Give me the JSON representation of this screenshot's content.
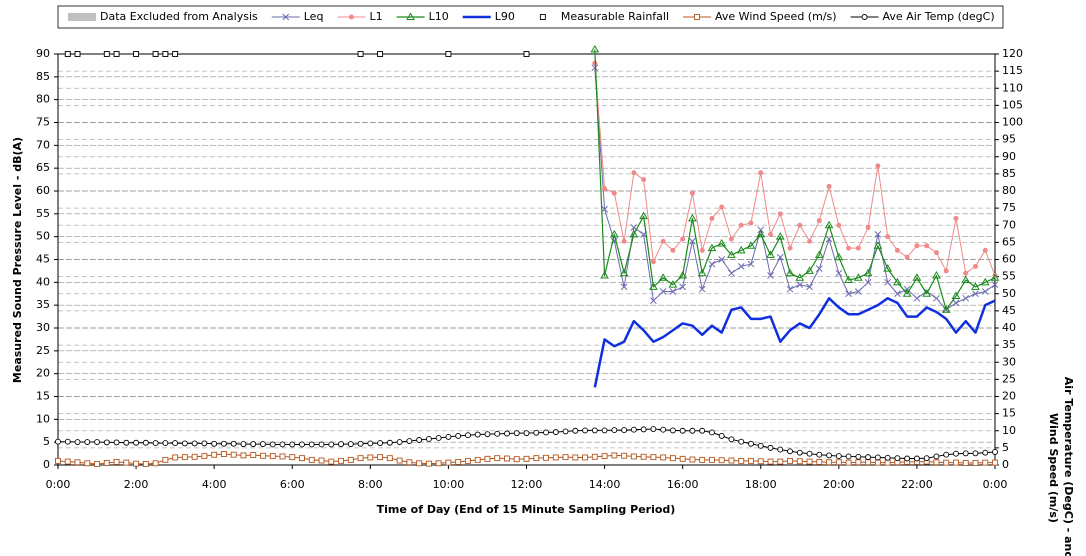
{
  "chart_data": {
    "type": "line",
    "xlabel": "Time of Day (End of 15 Minute Sampling Period)",
    "ylabel": "Measured Sound Pressure Level - dB(A)",
    "y2label": [
      "Air Temperature (DegC) - and",
      "Wind Speed (m/s)"
    ],
    "xlim": [
      0,
      24
    ],
    "xticks": [
      {
        "value": 0,
        "label": "0:00"
      },
      {
        "value": 2,
        "label": "2:00"
      },
      {
        "value": 4,
        "label": "4:00"
      },
      {
        "value": 6,
        "label": "6:00"
      },
      {
        "value": 8,
        "label": "8:00"
      },
      {
        "value": 10,
        "label": "10:00"
      },
      {
        "value": 12,
        "label": "12:00"
      },
      {
        "value": 14,
        "label": "14:00"
      },
      {
        "value": 16,
        "label": "16:00"
      },
      {
        "value": 18,
        "label": "18:00"
      },
      {
        "value": 20,
        "label": "20:00"
      },
      {
        "value": 22,
        "label": "22:00"
      },
      {
        "value": 24,
        "label": "0:00"
      }
    ],
    "ylim": [
      0,
      90
    ],
    "yticks": [
      0,
      5,
      10,
      15,
      20,
      25,
      30,
      35,
      40,
      45,
      50,
      55,
      60,
      65,
      70,
      75,
      80,
      85,
      90
    ],
    "y2lim": [
      0,
      120
    ],
    "y2ticks": [
      0,
      5,
      10,
      15,
      20,
      25,
      30,
      35,
      40,
      45,
      50,
      55,
      60,
      65,
      70,
      75,
      80,
      85,
      90,
      95,
      100,
      105,
      110,
      115,
      120
    ],
    "grid": true,
    "legend": "top",
    "x": [
      0,
      0.25,
      0.5,
      0.75,
      1,
      1.25,
      1.5,
      1.75,
      2,
      2.25,
      2.5,
      2.75,
      3,
      3.25,
      3.5,
      3.75,
      4,
      4.25,
      4.5,
      4.75,
      5,
      5.25,
      5.5,
      5.75,
      6,
      6.25,
      6.5,
      6.75,
      7,
      7.25,
      7.5,
      7.75,
      8,
      8.25,
      8.5,
      8.75,
      9,
      9.25,
      9.5,
      9.75,
      10,
      10.25,
      10.5,
      10.75,
      11,
      11.25,
      11.5,
      11.75,
      12,
      12.25,
      12.5,
      12.75,
      13,
      13.25,
      13.5,
      13.75,
      14,
      14.25,
      14.5,
      14.75,
      15,
      15.25,
      15.5,
      15.75,
      16,
      16.25,
      16.5,
      16.75,
      17,
      17.25,
      17.5,
      17.75,
      18,
      18.25,
      18.5,
      18.75,
      19,
      19.25,
      19.5,
      19.75,
      20,
      20.25,
      20.5,
      20.75,
      21,
      21.25,
      21.5,
      21.75,
      22,
      22.25,
      22.5,
      22.75,
      23,
      23.25,
      23.5,
      23.75,
      24
    ],
    "series": [
      {
        "name": "Data Excluded from Analysis",
        "color": "#c0c0c0",
        "marker": "rect"
      },
      {
        "name": "Leq",
        "color": "#6b6bb0",
        "marker": "x",
        "line_width": 1,
        "values": [
          null,
          null,
          null,
          null,
          null,
          null,
          null,
          null,
          null,
          null,
          null,
          null,
          null,
          null,
          null,
          null,
          null,
          null,
          null,
          null,
          null,
          null,
          null,
          null,
          null,
          null,
          null,
          null,
          null,
          null,
          null,
          null,
          null,
          null,
          null,
          null,
          null,
          null,
          null,
          null,
          null,
          null,
          null,
          null,
          null,
          null,
          null,
          null,
          null,
          null,
          null,
          null,
          null,
          null,
          null,
          87,
          56,
          49,
          39,
          52,
          50.5,
          36,
          38,
          38,
          39,
          49,
          38.5,
          44,
          45,
          42,
          43.5,
          44,
          51.5,
          41.5,
          45.5,
          38.5,
          39.5,
          39,
          43,
          49.5,
          42,
          37.5,
          38,
          40,
          50.5,
          40,
          37.5,
          38.5,
          36.5,
          38,
          36.5,
          34,
          35.5,
          36.5,
          37.5,
          38,
          39.5
        ]
      },
      {
        "name": "L1",
        "color": "#f08a8a",
        "marker": "circle",
        "line_width": 1,
        "values": [
          null,
          null,
          null,
          null,
          null,
          null,
          null,
          null,
          null,
          null,
          null,
          null,
          null,
          null,
          null,
          null,
          null,
          null,
          null,
          null,
          null,
          null,
          null,
          null,
          null,
          null,
          null,
          null,
          null,
          null,
          null,
          null,
          null,
          null,
          null,
          null,
          null,
          null,
          null,
          null,
          null,
          null,
          null,
          null,
          null,
          null,
          null,
          null,
          null,
          null,
          null,
          null,
          null,
          null,
          null,
          88,
          60.5,
          59.5,
          49,
          64,
          62.5,
          44.5,
          49,
          47,
          49.5,
          59.5,
          47,
          54,
          56.5,
          49.5,
          52.5,
          53,
          64,
          50.5,
          55,
          47.5,
          52.5,
          49,
          53.5,
          61,
          52.5,
          47.5,
          47.5,
          52,
          65.5,
          50,
          47,
          45.5,
          48,
          48,
          46.5,
          42.5,
          54,
          42,
          43.5,
          47,
          41.5
        ]
      },
      {
        "name": "L10",
        "color": "#1a8a1a",
        "marker": "triangle",
        "line_width": 1.2,
        "values": [
          null,
          null,
          null,
          null,
          null,
          null,
          null,
          null,
          null,
          null,
          null,
          null,
          null,
          null,
          null,
          null,
          null,
          null,
          null,
          null,
          null,
          null,
          null,
          null,
          null,
          null,
          null,
          null,
          null,
          null,
          null,
          null,
          null,
          null,
          null,
          null,
          null,
          null,
          null,
          null,
          null,
          null,
          null,
          null,
          null,
          null,
          null,
          null,
          null,
          null,
          null,
          null,
          null,
          null,
          null,
          91,
          41.5,
          50.5,
          42,
          50.5,
          54.5,
          39,
          41,
          39.5,
          41.5,
          54,
          42,
          47.5,
          48.5,
          46,
          47,
          48,
          50.5,
          46,
          50,
          42,
          41,
          42.5,
          46,
          52.5,
          45.5,
          40.5,
          41,
          42,
          48,
          43,
          40,
          37.5,
          41,
          37.5,
          41.5,
          34,
          37,
          40.5,
          39,
          40,
          41
        ]
      },
      {
        "name": "L90",
        "color": "#1030e0",
        "marker": "none",
        "line_width": 2.5,
        "values": [
          null,
          null,
          null,
          null,
          null,
          null,
          null,
          null,
          null,
          null,
          null,
          null,
          null,
          null,
          null,
          null,
          null,
          null,
          null,
          null,
          null,
          null,
          null,
          null,
          null,
          null,
          null,
          null,
          null,
          null,
          null,
          null,
          null,
          null,
          null,
          null,
          null,
          null,
          null,
          null,
          null,
          null,
          null,
          null,
          null,
          null,
          null,
          null,
          null,
          null,
          null,
          null,
          null,
          null,
          null,
          17,
          27.5,
          26,
          27,
          31.5,
          29.5,
          27,
          28,
          29.5,
          31,
          30.5,
          28.5,
          30.5,
          29,
          34,
          34.5,
          32,
          32,
          32.5,
          27,
          29.5,
          31,
          30,
          33,
          36.5,
          34.5,
          33,
          33,
          34,
          35,
          36.5,
          35.5,
          32.5,
          32.5,
          34.5,
          33.5,
          32,
          29,
          31.5,
          29,
          35,
          36
        ]
      },
      {
        "name": "Measurable Rainfall",
        "color": "#000000",
        "marker": "square-open",
        "line": false,
        "values": [
          null,
          90,
          90,
          null,
          null,
          90,
          90,
          null,
          90,
          null,
          90,
          90,
          90,
          null,
          null,
          null,
          null,
          null,
          null,
          null,
          null,
          null,
          null,
          null,
          null,
          null,
          null,
          null,
          null,
          null,
          null,
          90,
          null,
          90,
          null,
          null,
          null,
          null,
          null,
          null,
          90,
          null,
          null,
          null,
          null,
          null,
          null,
          null,
          90,
          null,
          null,
          null,
          null,
          null,
          null,
          null,
          null,
          null,
          null,
          null,
          null,
          null,
          null,
          null,
          null,
          null,
          null,
          null,
          null,
          null,
          null,
          null,
          null,
          null,
          null,
          null,
          null,
          null,
          null,
          null,
          null,
          null,
          null,
          null,
          null,
          null,
          null,
          null,
          null,
          null,
          null,
          null,
          null,
          null,
          null,
          null,
          null
        ]
      },
      {
        "name": "Ave Wind Speed (m/s)",
        "color": "#b5541c",
        "marker": "square-open",
        "line_width": 1,
        "axis": "y2",
        "values": [
          1.2,
          1.0,
          0.8,
          0.5,
          0.3,
          0.6,
          0.9,
          0.7,
          0.4,
          0.3,
          0.5,
          1.5,
          2.2,
          2.3,
          2.4,
          2.6,
          3.0,
          3.2,
          3.0,
          2.8,
          2.9,
          2.7,
          2.6,
          2.5,
          2.3,
          2.0,
          1.5,
          1.3,
          1.0,
          1.2,
          1.5,
          2.0,
          2.2,
          2.3,
          2.0,
          1.3,
          0.8,
          0.5,
          0.4,
          0.5,
          0.7,
          0.9,
          1.2,
          1.5,
          1.8,
          2.0,
          1.9,
          1.7,
          1.8,
          2.0,
          2.1,
          2.2,
          2.3,
          2.2,
          2.2,
          2.4,
          2.6,
          2.8,
          2.7,
          2.5,
          2.4,
          2.3,
          2.2,
          2.0,
          1.8,
          1.6,
          1.5,
          1.5,
          1.4,
          1.3,
          1.2,
          1.2,
          1.1,
          1.0,
          1.0,
          1.2,
          1.1,
          1.0,
          0.9,
          0.8,
          0.8,
          0.7,
          0.8,
          0.8,
          0.7,
          0.7,
          0.8,
          0.9,
          0.9,
          1.0,
          0.8,
          0.7,
          0.7,
          0.6,
          0.6,
          0.7,
          0.7
        ]
      },
      {
        "name": "Ave Air Temp (degC)",
        "color": "#000000",
        "marker": "circle-open",
        "line_width": 1,
        "axis": "y2",
        "values": [
          6.8,
          6.8,
          6.7,
          6.7,
          6.7,
          6.6,
          6.6,
          6.5,
          6.5,
          6.5,
          6.4,
          6.4,
          6.4,
          6.3,
          6.3,
          6.3,
          6.2,
          6.2,
          6.2,
          6.1,
          6.1,
          6.1,
          6.0,
          6.0,
          6.0,
          6.0,
          6.0,
          6.0,
          6.0,
          6.1,
          6.1,
          6.2,
          6.3,
          6.4,
          6.5,
          6.7,
          7.0,
          7.3,
          7.6,
          7.9,
          8.2,
          8.5,
          8.7,
          8.9,
          9.0,
          9.1,
          9.2,
          9.3,
          9.3,
          9.4,
          9.5,
          9.6,
          9.8,
          10.0,
          10.1,
          10.1,
          10.1,
          10.2,
          10.2,
          10.3,
          10.4,
          10.5,
          10.3,
          10.1,
          10.0,
          10.0,
          10.0,
          9.5,
          8.5,
          7.5,
          6.8,
          6.2,
          5.6,
          5.0,
          4.5,
          4.0,
          3.6,
          3.3,
          3.0,
          2.8,
          2.6,
          2.5,
          2.4,
          2.3,
          2.2,
          2.1,
          2.0,
          1.9,
          1.9,
          2.0,
          2.5,
          3.0,
          3.3,
          3.4,
          3.4,
          3.6,
          3.8
        ]
      }
    ]
  }
}
